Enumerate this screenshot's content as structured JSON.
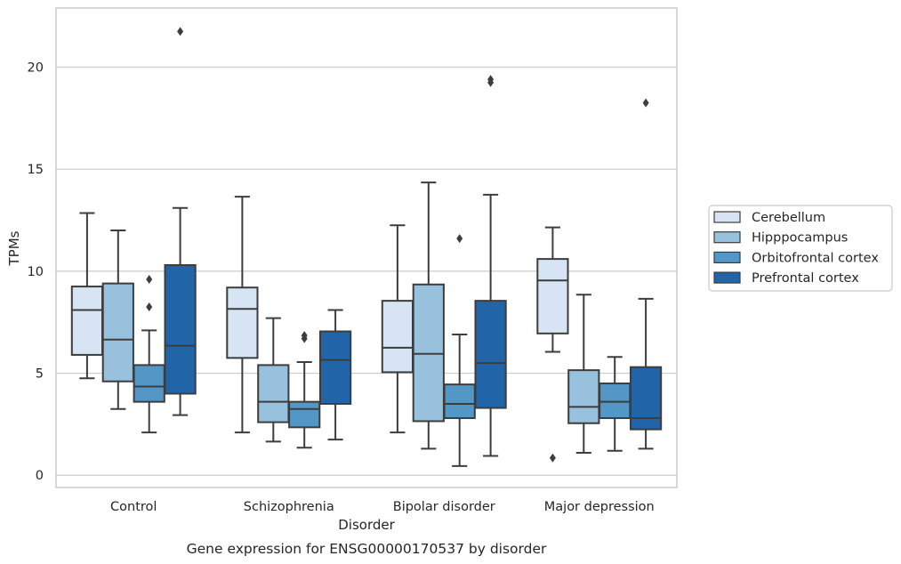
{
  "chart_data": {
    "type": "box",
    "title": "",
    "caption": "Gene expression for ENSG00000170537 by disorder",
    "xlabel": "Disorder",
    "ylabel": "TPMs",
    "ylim": [
      -0.6,
      22.9
    ],
    "yticks": [
      0,
      5,
      10,
      15,
      20
    ],
    "grid": "horizontal",
    "legend_position": "right",
    "categories": [
      "Control",
      "Schizophrenia",
      "Bipolar disorder",
      "Major depression"
    ],
    "series": [
      {
        "name": "Cerebellum",
        "color": "#d6e4f3",
        "boxes": [
          {
            "whislo": 4.75,
            "q1": 5.9,
            "med": 8.1,
            "q3": 9.25,
            "whishi": 12.85,
            "fliers": []
          },
          {
            "whislo": 2.1,
            "q1": 5.75,
            "med": 8.15,
            "q3": 9.2,
            "whishi": 13.65,
            "fliers": []
          },
          {
            "whislo": 2.1,
            "q1": 5.05,
            "med": 6.25,
            "q3": 8.55,
            "whishi": 12.25,
            "fliers": []
          },
          {
            "whislo": 6.05,
            "q1": 6.95,
            "med": 9.55,
            "q3": 10.6,
            "whishi": 12.15,
            "fliers": [
              0.85
            ]
          }
        ]
      },
      {
        "name": "Hipppocampus",
        "color": "#98c1dd",
        "boxes": [
          {
            "whislo": 3.25,
            "q1": 4.6,
            "med": 6.65,
            "q3": 9.4,
            "whishi": 12.0,
            "fliers": []
          },
          {
            "whislo": 1.65,
            "q1": 2.6,
            "med": 3.6,
            "q3": 5.4,
            "whishi": 7.7,
            "fliers": []
          },
          {
            "whislo": 1.3,
            "q1": 2.65,
            "med": 5.95,
            "q3": 9.35,
            "whishi": 14.35,
            "fliers": []
          },
          {
            "whislo": 1.1,
            "q1": 2.55,
            "med": 3.35,
            "q3": 5.15,
            "whishi": 8.85,
            "fliers": []
          }
        ]
      },
      {
        "name": "Orbitofrontal cortex",
        "color": "#5297c6",
        "boxes": [
          {
            "whislo": 2.1,
            "q1": 3.6,
            "med": 4.35,
            "q3": 5.4,
            "whishi": 7.1,
            "fliers": [
              8.25,
              9.6
            ]
          },
          {
            "whislo": 1.35,
            "q1": 2.35,
            "med": 3.25,
            "q3": 3.6,
            "whishi": 5.55,
            "fliers": [
              6.7,
              6.85
            ]
          },
          {
            "whislo": 0.45,
            "q1": 2.8,
            "med": 3.5,
            "q3": 4.45,
            "whishi": 6.9,
            "fliers": [
              11.6
            ]
          },
          {
            "whislo": 1.2,
            "q1": 2.8,
            "med": 3.6,
            "q3": 4.5,
            "whishi": 5.8,
            "fliers": []
          }
        ]
      },
      {
        "name": "Prefrontal cortex",
        "color": "#2165a8",
        "boxes": [
          {
            "whislo": 2.95,
            "q1": 4.0,
            "med": 6.35,
            "q3": 10.3,
            "whishi": 13.1,
            "fliers": [
              21.75
            ]
          },
          {
            "whislo": 1.75,
            "q1": 3.5,
            "med": 5.65,
            "q3": 7.05,
            "whishi": 8.1,
            "fliers": []
          },
          {
            "whislo": 0.95,
            "q1": 3.3,
            "med": 5.5,
            "q3": 8.55,
            "whishi": 13.75,
            "fliers": [
              19.25,
              19.4
            ]
          },
          {
            "whislo": 1.3,
            "q1": 2.25,
            "med": 2.8,
            "q3": 5.3,
            "whishi": 8.65,
            "fliers": [
              18.25
            ]
          }
        ]
      }
    ]
  }
}
